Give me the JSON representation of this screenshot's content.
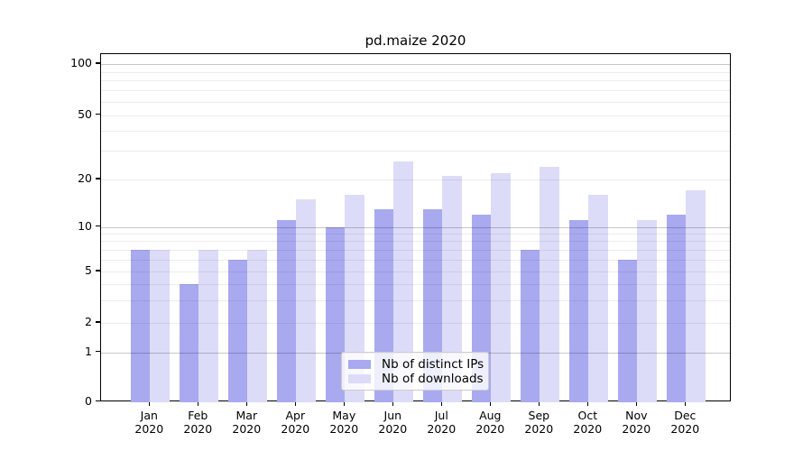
{
  "chart_data": {
    "type": "bar",
    "title": "pd.maize 2020",
    "categories": [
      "Jan",
      "Feb",
      "Mar",
      "Apr",
      "May",
      "Jun",
      "Jul",
      "Aug",
      "Sep",
      "Oct",
      "Nov",
      "Dec"
    ],
    "category_year": "2020",
    "series": [
      {
        "name": "Nb of distinct IPs",
        "color": "#a9a9f0",
        "values": [
          7,
          4,
          6,
          11,
          10,
          13,
          13,
          12,
          7,
          11,
          6,
          12
        ]
      },
      {
        "name": "Nb of downloads",
        "color": "#dcdcf8",
        "values": [
          7,
          7,
          7,
          15,
          16,
          26,
          21,
          22,
          24,
          16,
          11,
          17
        ]
      }
    ],
    "yscale": "symlog",
    "y_ticks": [
      0,
      1,
      2,
      5,
      10,
      20,
      50,
      100
    ],
    "y_minor_gridlines": [
      2,
      3,
      4,
      5,
      6,
      7,
      8,
      9,
      20,
      30,
      40,
      50,
      60,
      70,
      80,
      90
    ],
    "y_major_gridlines": [
      1,
      10,
      100
    ],
    "ylim": [
      0,
      115
    ],
    "grid": "both",
    "legend_position": "lower-center",
    "colors": {
      "grid_major": "#c7c7c7",
      "grid_minor": "#ebebeb",
      "axis": "#000000"
    }
  }
}
